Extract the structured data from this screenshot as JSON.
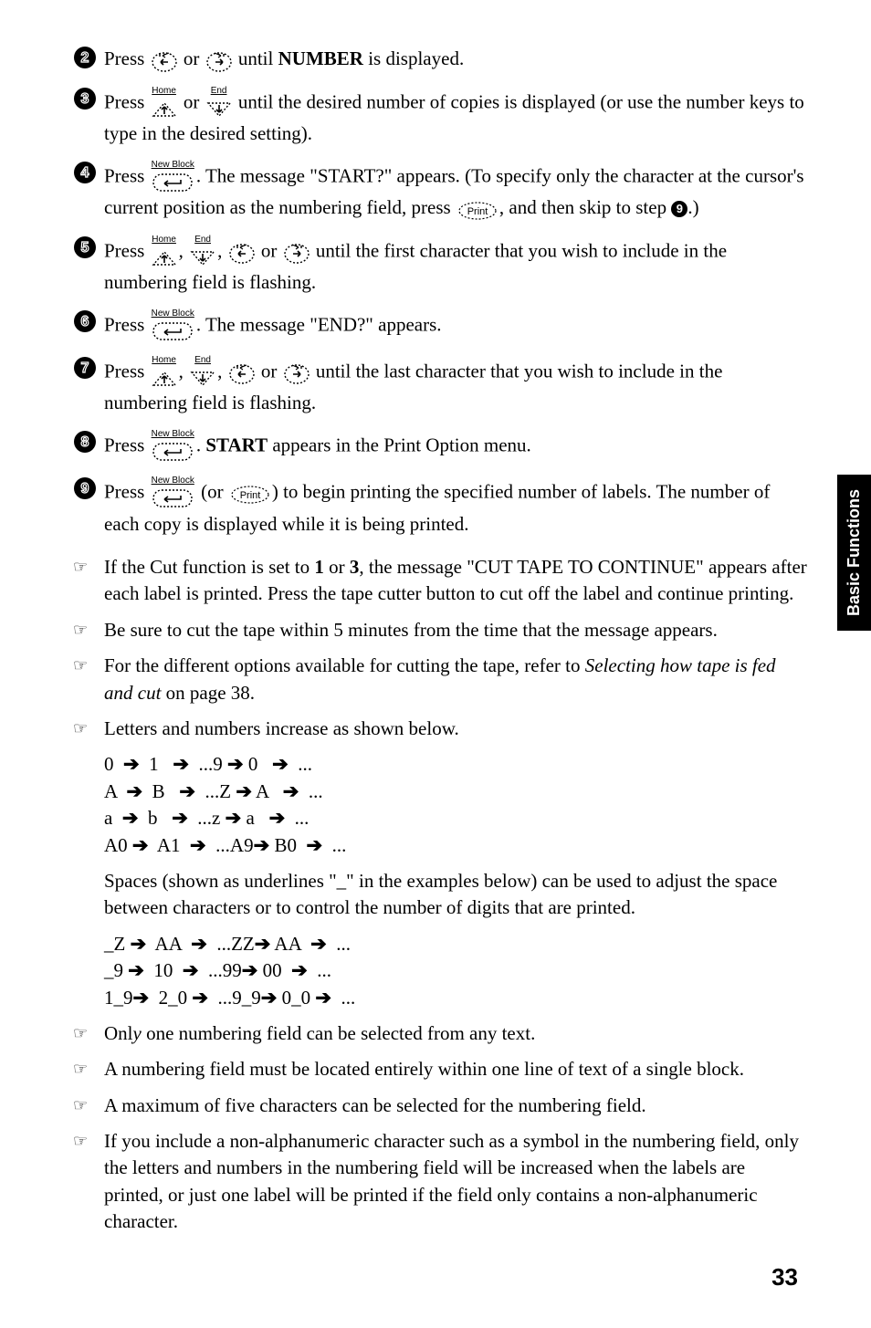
{
  "side_tab": "Basic Functions",
  "page_number": "33",
  "steps": [
    {
      "n": "2",
      "html": "Press {LEFT} or {RIGHT} until <strong>NUMBER</strong> is displayed."
    },
    {
      "n": "3",
      "html": "Press {UP_HOME} or {DOWN_END} until the desired number of copies is displayed (or use the number keys to type in the desired setting)."
    },
    {
      "n": "4",
      "html": "Press {ENTER_NB}. The message \"START?\" appears. (To specify only the character at the cursor's current position as the numbering field, press {PRINT}, and then skip to step {REF9}.)"
    },
    {
      "n": "5",
      "html": "Press {UP_HOME}, {DOWN_END}, {LEFT} or {RIGHT} until the first character that you wish to include in the numbering field is flashing."
    },
    {
      "n": "6",
      "html": "Press {ENTER_NB}. The message \"END?\" appears."
    },
    {
      "n": "7",
      "html": "Press {UP_HOME}, {DOWN_END}, {LEFT} or {RIGHT} until the last character that you wish to include in the numbering field is flashing."
    },
    {
      "n": "8",
      "html": "Press {ENTER_NB}. <strong>START</strong> appears in the Print Option menu."
    },
    {
      "n": "9",
      "html": "Press {ENTER_NB} (or {PRINT}) to begin printing the specified number of labels. The number of each copy is displayed while it is being printed."
    }
  ],
  "notes": [
    "If the Cut function is set to <strong>1</strong> or <strong>3</strong>, the message \"CUT TAPE TO CONTINUE\" appears after each label is printed. Press the tape cutter button to cut off the label and continue printing.",
    "Be sure to cut the tape within 5 minutes from the time that the message appears.",
    "For the different options available for cutting the tape, refer to <em>Selecting how tape is fed and cut</em> on page 38.",
    "Letters and numbers increase as shown below."
  ],
  "table1_rows": [
    [
      "0",
      "1",
      "...9",
      "0",
      "..."
    ],
    [
      "A",
      "B",
      "...Z",
      "A",
      "..."
    ],
    [
      "a",
      "b",
      "...z",
      "a",
      "..."
    ],
    [
      "A0",
      "A1",
      "...A9",
      "B0",
      "..."
    ]
  ],
  "table_mid_text": "Spaces (shown as underlines \"_\" in the examples below) can be used to adjust the space between characters or to control the number of digits that are printed.",
  "table2_rows": [
    [
      "_Z",
      "AA",
      "...ZZ",
      "AA",
      "..."
    ],
    [
      "_9",
      "10",
      "...99",
      "00",
      "..."
    ],
    [
      "1_9",
      "2_0",
      "...9_9",
      "0_0",
      "..."
    ]
  ],
  "notes_after": [
    "Onl<em>y</em> one numbering field can be selected from any text.",
    "A numbering field must be located entirely within one line of text of a single block.",
    "A maximum of five characters can be selected for the numbering field.",
    "If you include a non-alphanumeric character such as a symbol in the numbering field, only the letters and numbers in the numbering field will be increased when the labels are printed, or just one label will be printed if the field only contains a non-alphanumeric character."
  ],
  "icon_labels": {
    "up_home": "Home",
    "down_end": "End",
    "enter_nb": "New Block",
    "print": "Print"
  },
  "colors": {
    "text": "#000000",
    "bg": "#ffffff"
  }
}
